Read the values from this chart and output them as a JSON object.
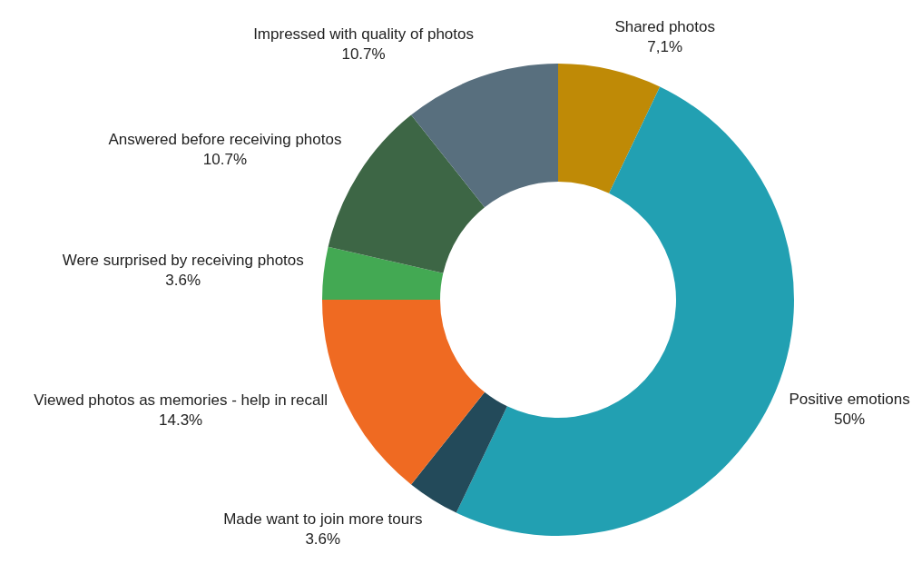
{
  "chart_data": {
    "type": "donut",
    "categories": [
      "Shared photos",
      "Positive emotions",
      "Made want to join more tours",
      "Viewed photos as memories - help in recall",
      "Were surprised by receiving photos",
      "Answered before receiving photos",
      "Impressed with quality of photos"
    ],
    "values": [
      7.1,
      50,
      3.6,
      14.3,
      3.6,
      10.7,
      10.7
    ],
    "value_labels": [
      "7,1%",
      "50%",
      "3.6%",
      "14.3%",
      "3.6%",
      "10.7%",
      "10.7%"
    ],
    "colors": [
      "#bf8a06",
      "#22a0b2",
      "#234a5a",
      "#ef6a22",
      "#43a953",
      "#3d6645",
      "#586f7e"
    ],
    "legend": false
  }
}
